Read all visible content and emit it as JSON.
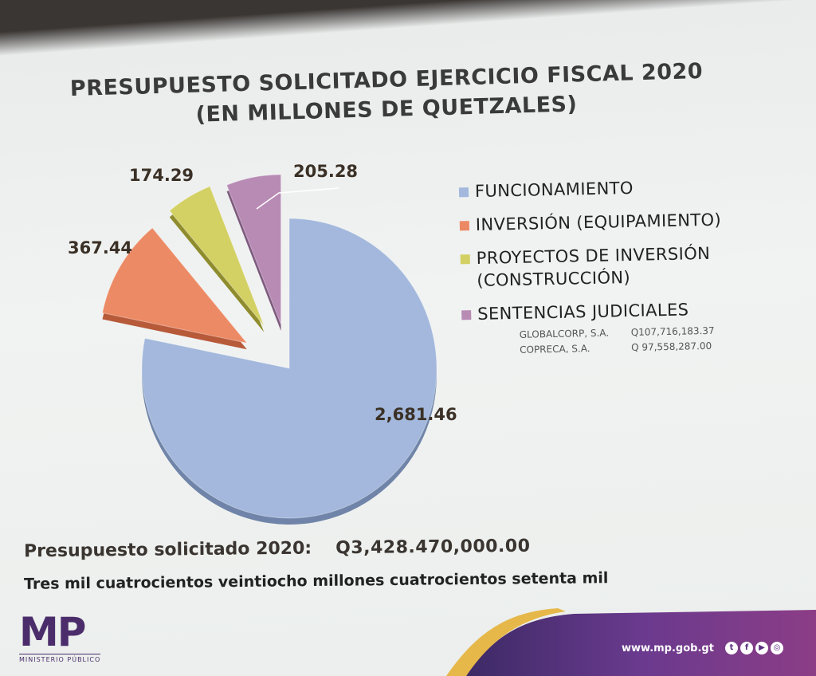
{
  "title_line1": "PRESUPUESTO SOLICITADO EJERCICIO FISCAL 2020",
  "title_line2": "(EN MILLONES DE QUETZALES)",
  "chart_data": {
    "type": "pie",
    "title": "PRESUPUESTO SOLICITADO EJERCICIO FISCAL 2020 (EN MILLONES DE QUETZALES)",
    "categories": [
      "FUNCIONAMIENTO",
      "INVERSIÓN (EQUIPAMIENTO)",
      "PROYECTOS DE INVERSIÓN (CONSTRUCCIÓN)",
      "SENTENCIAS JUDICIALES"
    ],
    "values": [
      2681.46,
      367.44,
      174.29,
      205.28
    ],
    "value_labels": [
      "2,681.46",
      "367.44",
      "174.29",
      "205.28"
    ],
    "colors": [
      "#a3b8dc",
      "#ec8a65",
      "#d3d064",
      "#b88bb5"
    ],
    "exploded": [
      false,
      true,
      true,
      true
    ],
    "legend_placement": "right"
  },
  "legend": {
    "items": [
      {
        "label": "FUNCIONAMIENTO",
        "color": "#a3b8dc"
      },
      {
        "label": "INVERSIÓN (EQUIPAMIENTO)",
        "color": "#ec8a65"
      },
      {
        "label": "PROYECTOS DE INVERSIÓN (CONSTRUCCIÓN)",
        "color": "#d3d064"
      },
      {
        "label": "SENTENCIAS JUDICIALES",
        "color": "#b88bb5"
      }
    ],
    "sub_items": [
      {
        "name": "GLOBALCORP, S.A.",
        "amount": "Q107,716,183.37"
      },
      {
        "name": "COPRECA, S.A.",
        "amount": "Q 97,558,287.00"
      }
    ]
  },
  "total": {
    "label": "Presupuesto solicitado 2020:",
    "amount": "Q3,428.470,000.00",
    "words": "Tres mil cuatrocientos veintiocho millones cuatrocientos setenta mil"
  },
  "footer": {
    "logo_text": "MP",
    "logo_subtext": "MINISTERIO PÚBLICO",
    "website": "www.mp.gob.gt",
    "social_icons": [
      "twitter-icon",
      "facebook-icon",
      "youtube-icon",
      "instagram-icon"
    ],
    "brand_purple": "#4b2d6b",
    "accent_gold": "#e6b84a"
  }
}
